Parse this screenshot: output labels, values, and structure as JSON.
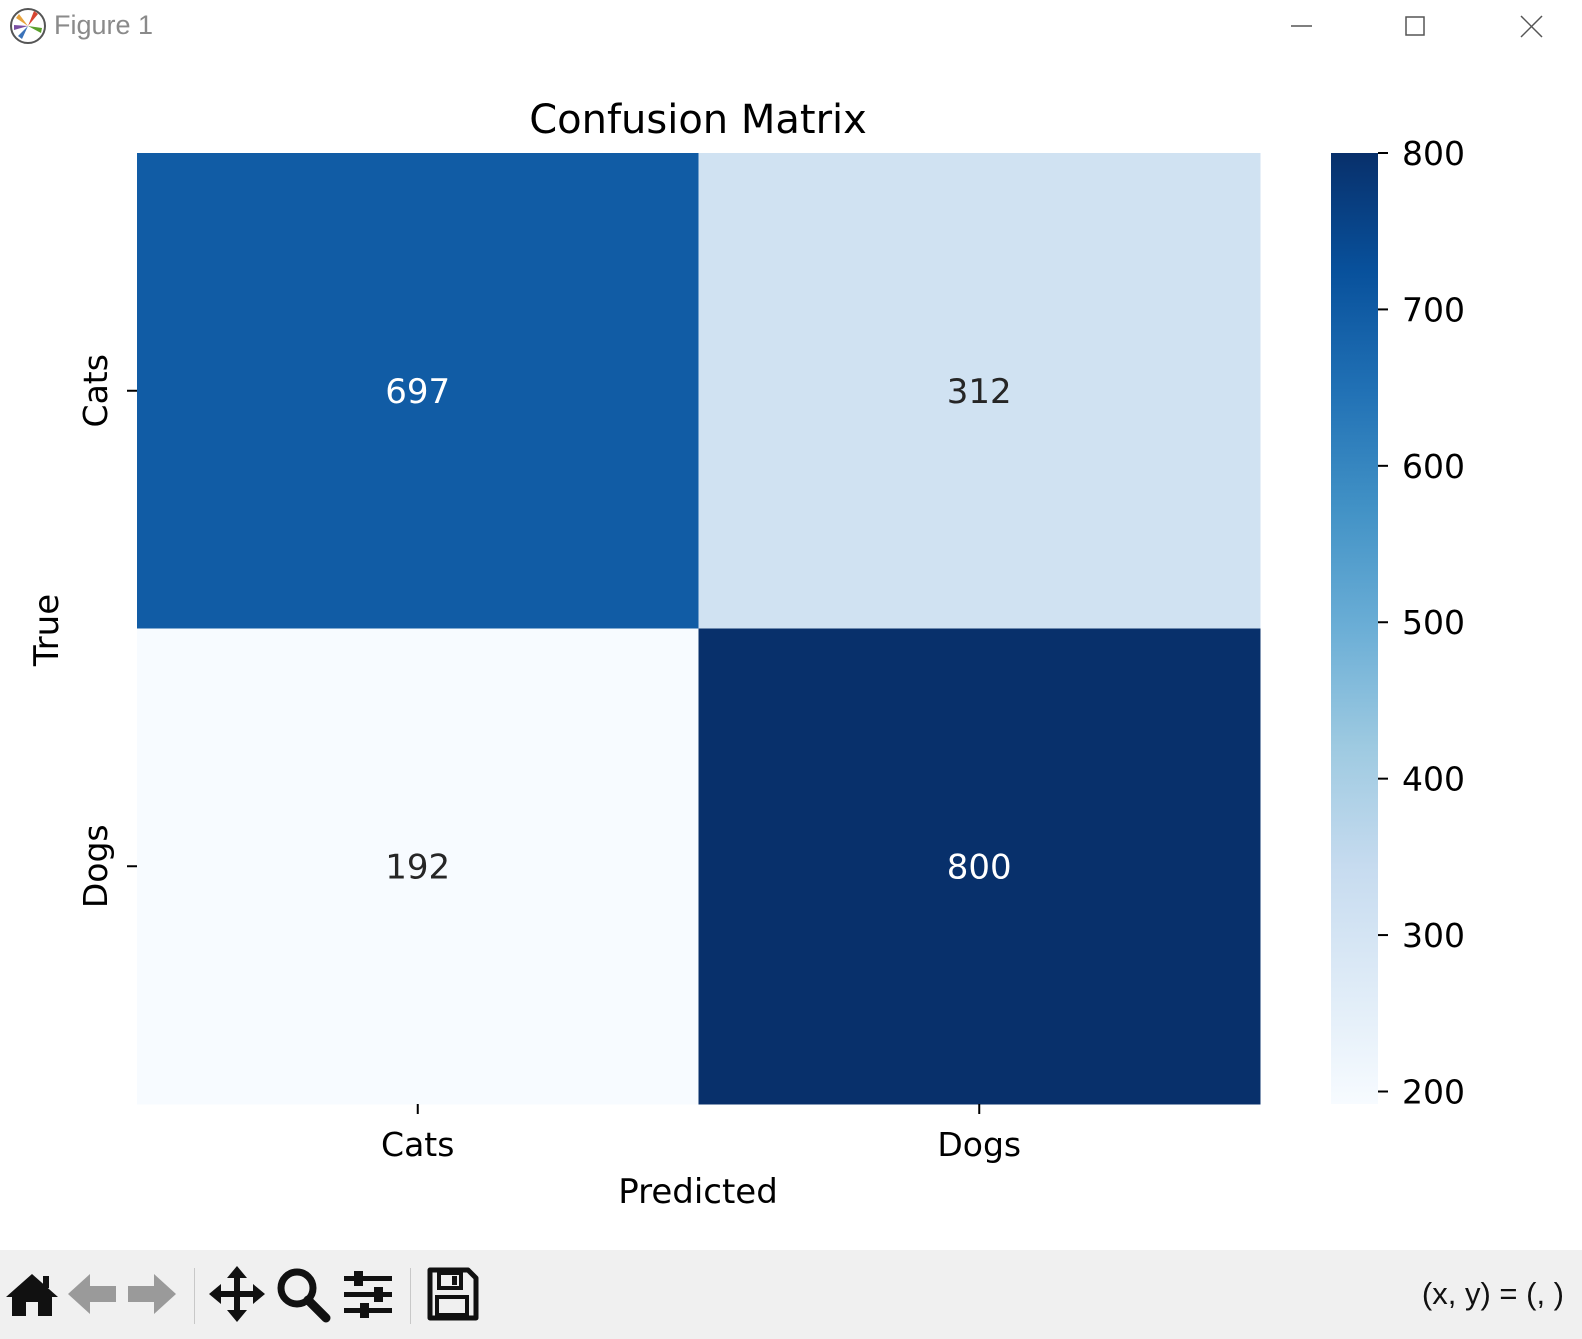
{
  "window": {
    "title": "Figure 1",
    "app_icon": "matplotlib-logo-icon",
    "controls": [
      "minimize-icon",
      "maximize-icon",
      "close-icon"
    ]
  },
  "chart_data": {
    "type": "heatmap",
    "title": "Confusion Matrix",
    "xlabel": "Predicted",
    "ylabel": "True",
    "x_categories": [
      "Cats",
      "Dogs"
    ],
    "y_categories": [
      "Cats",
      "Dogs"
    ],
    "values": [
      [
        697,
        312
      ],
      [
        192,
        800
      ]
    ],
    "annotations": [
      [
        "697",
        "312"
      ],
      [
        "192",
        "800"
      ]
    ],
    "colormap": "Blues",
    "colorbar": {
      "vmin": 192,
      "vmax": 800,
      "ticks": [
        200,
        300,
        400,
        500,
        600,
        700,
        800
      ],
      "tick_labels": [
        "200",
        "300",
        "400",
        "500",
        "600",
        "700",
        "800"
      ]
    },
    "colormap_stops": [
      "#f7fbff",
      "#deebf7",
      "#c6dbef",
      "#9ecae1",
      "#6baed6",
      "#4292c6",
      "#2171b5",
      "#08519c",
      "#08306b"
    ]
  },
  "toolbar": {
    "buttons": [
      "home-icon",
      "back-icon",
      "forward-icon",
      "pan-icon",
      "zoom-icon",
      "configure-subplots-icon",
      "save-icon"
    ],
    "coords_text": "(x, y) = (, )"
  }
}
